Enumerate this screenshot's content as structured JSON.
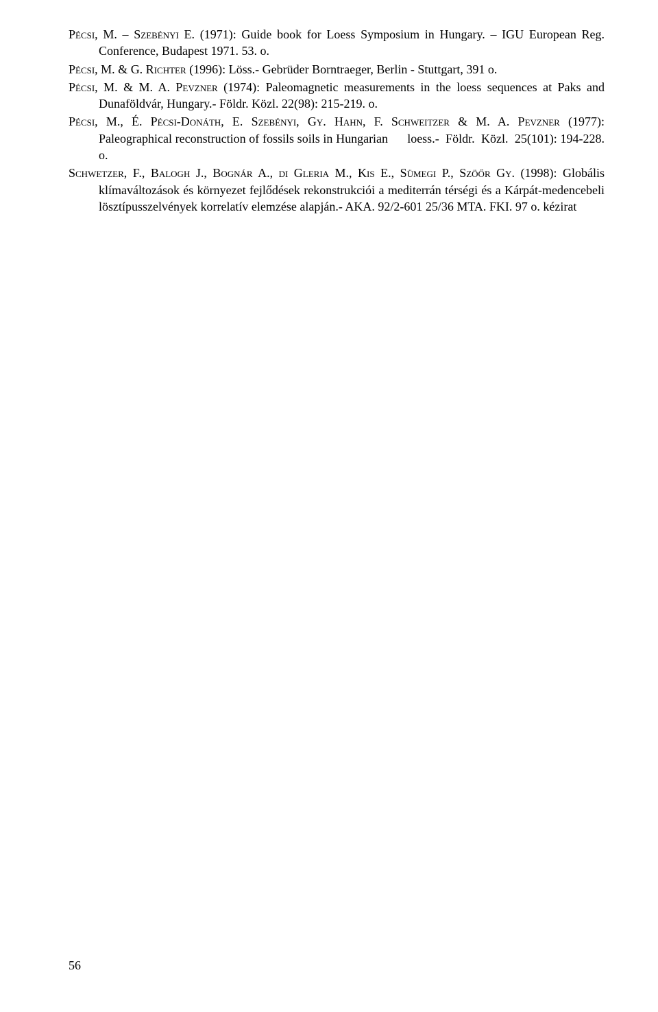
{
  "references": [
    {
      "authors_sc": "Pécsi, M. – Szebényi E.",
      "rest": " (1971): Guide book for Loess Symposium in Hungary. – IGU European Reg. Conference, Budapest 1971. 53. o."
    },
    {
      "authors_sc": "Pécsi, M. & G. Richter",
      "rest": " (1996): Löss.- Gebrüder Borntraeger, Berlin - Stuttgart, 391 o."
    },
    {
      "authors_sc": "Pécsi, M. & M. A. Pevzner",
      "rest": " (1974): Paleomagnetic measurements in the loess sequences at Paks and Dunaföldvár, Hungary.- Földr. Közl. 22(98): 215-219. o."
    },
    {
      "authors_sc": "Pécsi, M., É. Pécsi-Donáth, E. Szebényi, Gy. Hahn, F. Schweitzer & M. A. Pevzner",
      "rest": " (1977): Paleographical reconstruction of fossils soils in Hungarian      loess.-  Földr.  Közl.  25(101): 194-228. o."
    },
    {
      "authors_sc": "Schwetzer, F., Balogh J., Bognár A., di Gleria M., Kis E., Sümegi P., Szöőr Gy.",
      "rest": " (1998): Globális klímaváltozások és környezet fejlődések rekonstrukciói a mediterrán térségi és a Kárpát-medencebeli lösztípusszelvények korrelatív elemzése alapján.- AKA. 92/2-601 25/36 MTA. FKI. 97 o. kézirat"
    }
  ],
  "page_number": "56"
}
